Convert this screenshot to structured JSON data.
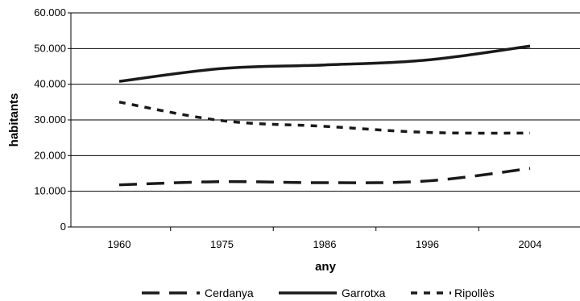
{
  "chart_data": {
    "type": "line",
    "xlabel": "any",
    "ylabel": "habitants",
    "categories": [
      "1960",
      "1975",
      "1986",
      "1996",
      "2004"
    ],
    "y_tick_labels": [
      "0",
      "10.000",
      "20.000",
      "30.000",
      "40.000",
      "50.000",
      "60.000"
    ],
    "ylim": [
      0,
      60000
    ],
    "grid": "horizontal",
    "legend_position": "bottom",
    "series": [
      {
        "name": "Cerdanya",
        "values": [
          11800,
          12700,
          12400,
          12900,
          16400
        ],
        "dash": "long-dash",
        "color": "#1a1a1a"
      },
      {
        "name": "Garrotxa",
        "values": [
          40800,
          44400,
          45400,
          46800,
          50700
        ],
        "dash": "solid",
        "color": "#1a1a1a"
      },
      {
        "name": "Ripollès",
        "values": [
          35000,
          29800,
          28200,
          26500,
          26300
        ],
        "dash": "short-dash",
        "color": "#1a1a1a"
      }
    ]
  }
}
